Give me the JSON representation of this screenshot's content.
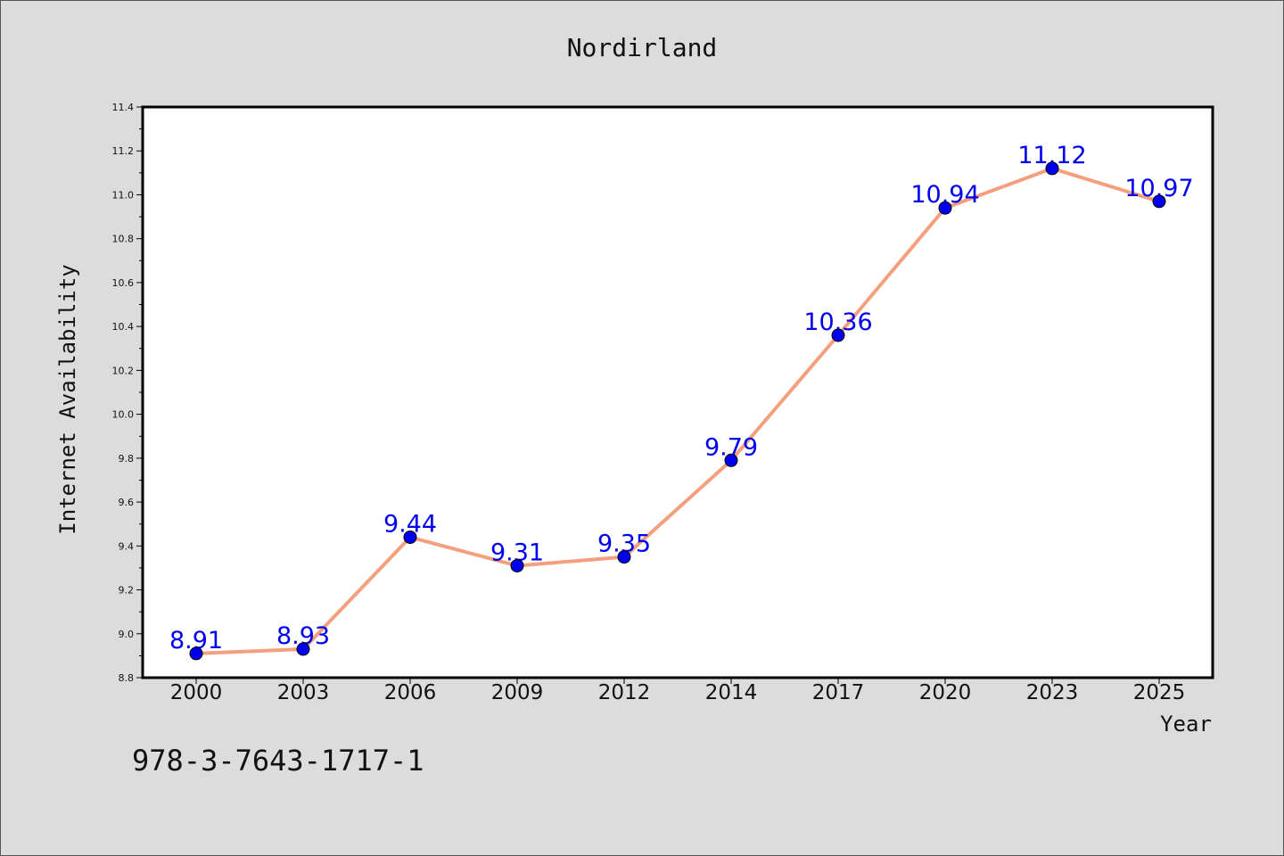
{
  "chart_data": {
    "type": "line",
    "title": "Nordirland",
    "xlabel": "Year",
    "ylabel": "Internet Availability",
    "categories": [
      "2000",
      "2003",
      "2006",
      "2009",
      "2012",
      "2014",
      "2017",
      "2020",
      "2023",
      "2025"
    ],
    "series": [
      {
        "values": [
          8.91,
          8.93,
          9.44,
          9.31,
          9.35,
          9.79,
          10.36,
          10.94,
          11.12,
          10.97
        ],
        "labels": [
          "8.91",
          "8.93",
          "9.44",
          "9.31",
          "9.35",
          "9.79",
          "10.36",
          "10.94",
          "11.12",
          "10.97"
        ],
        "line_color": "#f4a07f",
        "marker_color": "#0000ee",
        "label_color": "#0000ee"
      }
    ],
    "ylim": [
      8.8,
      11.4
    ],
    "yticks": [
      "8.8",
      "9.0",
      "9.2",
      "9.4",
      "9.6",
      "9.8",
      "10.0",
      "10.2",
      "10.4",
      "10.6",
      "10.8",
      "11.0",
      "11.2",
      "11.4"
    ],
    "grid": false,
    "legend": "none"
  },
  "footer_text": "978-3-7643-1717-1"
}
